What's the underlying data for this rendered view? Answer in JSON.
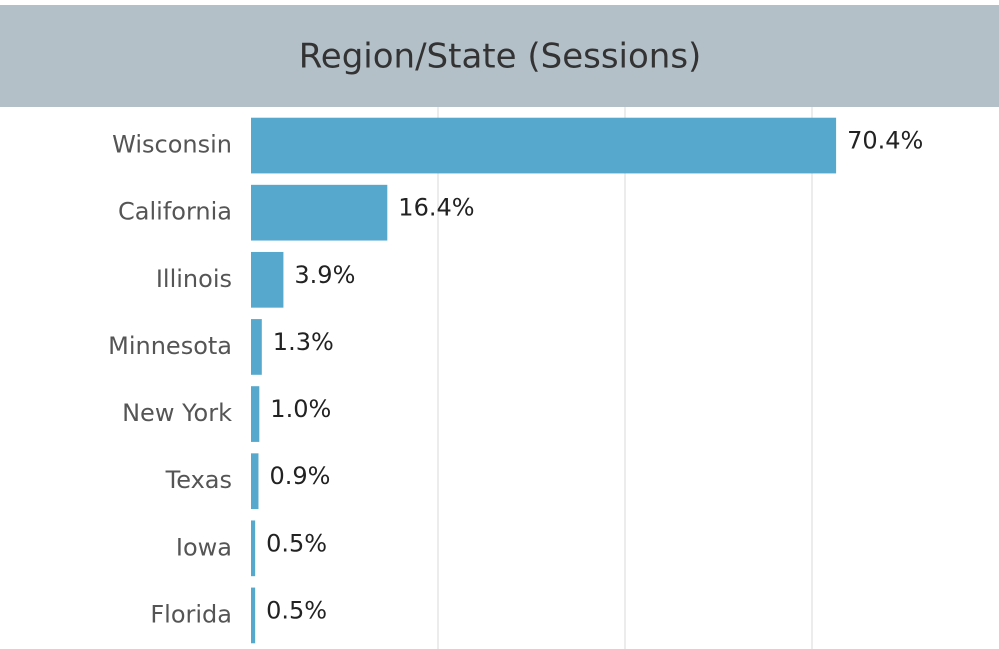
{
  "chart_data": {
    "type": "bar",
    "orientation": "horizontal",
    "title": "Region/State (Sessions)",
    "categories": [
      "Wisconsin",
      "California",
      "Illinois",
      "Minnesota",
      "New York",
      "Texas",
      "Iowa",
      "Florida"
    ],
    "values": [
      70.4,
      16.4,
      3.9,
      1.3,
      1.0,
      0.9,
      0.5,
      0.5
    ],
    "value_labels": [
      "70.4%",
      "16.4%",
      "3.9%",
      "1.3%",
      "1.0%",
      "0.9%",
      "0.5%",
      "0.5%"
    ],
    "color": "#56a9cc",
    "xlim": [
      0,
      90
    ],
    "xticks": [
      22.5,
      45,
      67.5
    ],
    "grid": true
  }
}
